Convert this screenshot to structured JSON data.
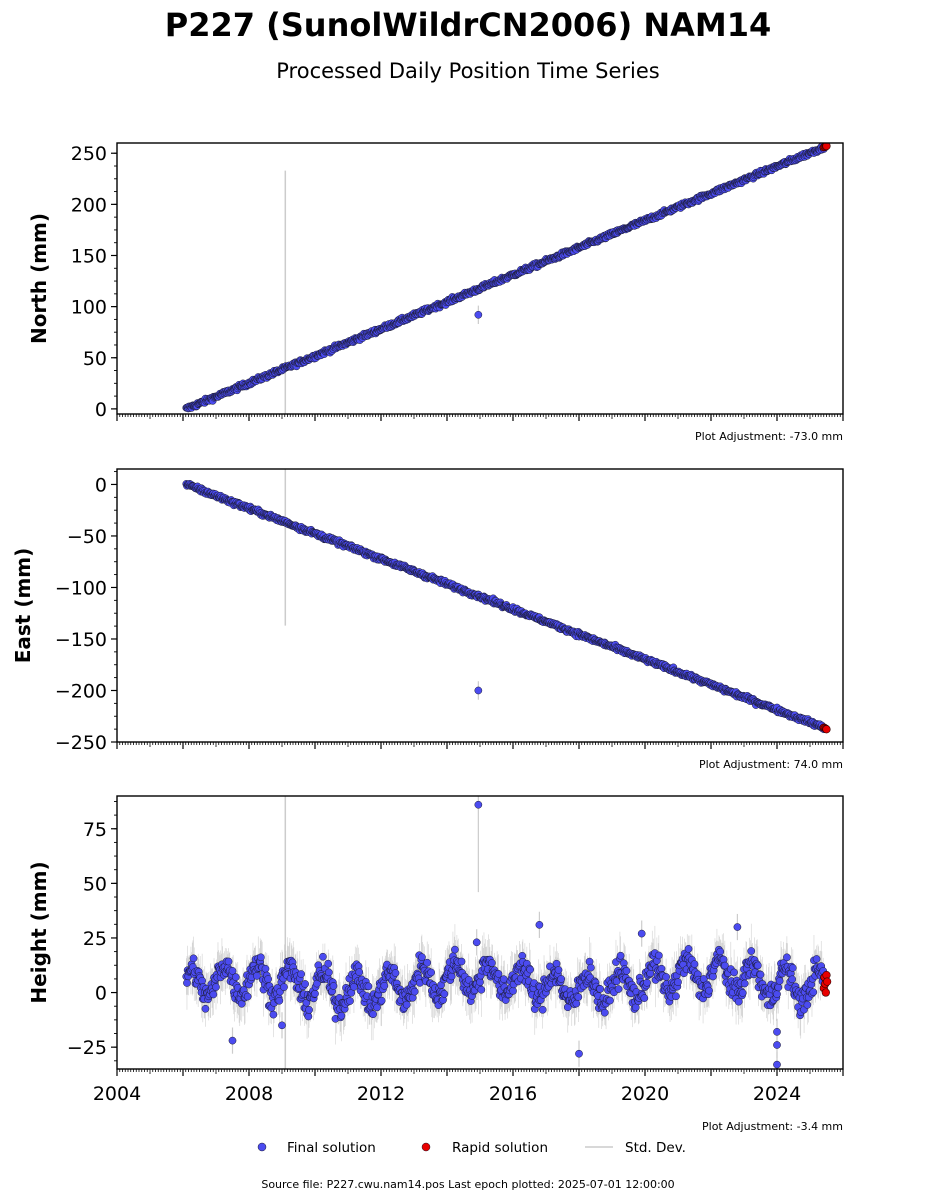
{
  "title": "P227 (SunolWildrCN2006) NAM14",
  "subtitle": "Processed Daily Position Time Series",
  "footer": "Source file: P227.cwu.nam14.pos  Last epoch plotted: 2025-07-01 12:00:00",
  "legend": {
    "final_label": "Final solution",
    "rapid_label": "Rapid solution",
    "std_label": "Std. Dev."
  },
  "colors": {
    "final": "#4b4bf0",
    "rapid": "#e80000",
    "std": "#999999",
    "edge": "#1a1a2e"
  },
  "chart_data": [
    {
      "type": "scatter",
      "component": "north",
      "ylabel": "North (mm)",
      "adjustment": "Plot Adjustment: -73.0 mm",
      "xlim": [
        2004,
        2026
      ],
      "ylim": [
        -5,
        260
      ],
      "yticks": [
        0,
        50,
        100,
        150,
        200,
        250
      ],
      "ytick_labels": [
        "0",
        "50",
        "100",
        "150",
        "200",
        "250"
      ],
      "y_minor_step": 12.5,
      "trend": {
        "x0": 2006.1,
        "y0": 0,
        "x1": 2025.5,
        "y1": 257,
        "noise_mm": 2
      },
      "anomalies": [
        {
          "x": 2014.95,
          "y": 92,
          "err": 9
        }
      ],
      "spike_lines": [
        {
          "x": 2009.1,
          "y_from": -5,
          "y_to": 233
        }
      ],
      "rapid_points": [
        {
          "x": 2025.42,
          "y": 255.8
        },
        {
          "x": 2025.45,
          "y": 256.2
        },
        {
          "x": 2025.48,
          "y": 256.7
        },
        {
          "x": 2025.5,
          "y": 257.1
        }
      ]
    },
    {
      "type": "scatter",
      "component": "east",
      "ylabel": "East (mm)",
      "adjustment": "Plot Adjustment: 74.0 mm",
      "xlim": [
        2004,
        2026
      ],
      "ylim": [
        -250,
        15
      ],
      "yticks": [
        0,
        -50,
        -100,
        -150,
        -200,
        -250
      ],
      "ytick_labels": [
        "0",
        "−50",
        "−100",
        "−150",
        "−200",
        "−250"
      ],
      "y_minor_step": 12.5,
      "trend": {
        "x0": 2006.1,
        "y0": 0,
        "x1": 2025.5,
        "y1": -237,
        "noise_mm": 2
      },
      "anomalies": [
        {
          "x": 2014.95,
          "y": -200,
          "err": 9
        }
      ],
      "spike_lines": [
        {
          "x": 2009.1,
          "y_from": 15,
          "y_to": -137
        }
      ],
      "rapid_points": [
        {
          "x": 2025.42,
          "y": -236.0
        },
        {
          "x": 2025.45,
          "y": -236.5
        },
        {
          "x": 2025.48,
          "y": -237.2
        },
        {
          "x": 2025.5,
          "y": -237.6
        }
      ]
    },
    {
      "type": "scatter",
      "component": "height",
      "ylabel": "Height (mm)",
      "adjustment": "Plot Adjustment: -3.4 mm",
      "xlim": [
        2004,
        2026
      ],
      "ylim": [
        -35,
        90
      ],
      "yticks": [
        -25,
        0,
        25,
        50,
        75
      ],
      "ytick_labels": [
        "−25",
        "0",
        "25",
        "50",
        "75"
      ],
      "y_minor_step": 6.25,
      "xticks": [
        2004,
        2008,
        2012,
        2016,
        2020,
        2024
      ],
      "xtick_labels": [
        "2004",
        "2008",
        "2012",
        "2016",
        "2020",
        "2024"
      ],
      "trend": {
        "x0": 2006.1,
        "y0": 3,
        "x1": 2025.5,
        "y1": 6,
        "noise_mm": 6,
        "seasonal_mm": 7
      },
      "anomalies": [
        {
          "x": 2014.95,
          "y": 86,
          "err": 40
        },
        {
          "x": 2014.9,
          "y": 23,
          "err": 6
        },
        {
          "x": 2007.5,
          "y": -22,
          "err": 6
        },
        {
          "x": 2009.0,
          "y": -15,
          "err": 6
        },
        {
          "x": 2018.0,
          "y": -28,
          "err": 6
        },
        {
          "x": 2024.0,
          "y": -18,
          "err": 6
        },
        {
          "x": 2024.0,
          "y": -24,
          "err": 6
        },
        {
          "x": 2024.0,
          "y": -33,
          "err": 6
        },
        {
          "x": 2016.8,
          "y": 31,
          "err": 6
        },
        {
          "x": 2019.9,
          "y": 27,
          "err": 6
        },
        {
          "x": 2022.8,
          "y": 30,
          "err": 6
        }
      ],
      "spike_lines": [
        {
          "x": 2009.1,
          "y_from": 90,
          "y_to": -35
        }
      ],
      "rapid_points": [
        {
          "x": 2025.42,
          "y": 2
        },
        {
          "x": 2025.44,
          "y": 7
        },
        {
          "x": 2025.46,
          "y": 4
        },
        {
          "x": 2025.48,
          "y": 0
        },
        {
          "x": 2025.5,
          "y": 8
        },
        {
          "x": 2025.52,
          "y": 5
        }
      ]
    }
  ]
}
